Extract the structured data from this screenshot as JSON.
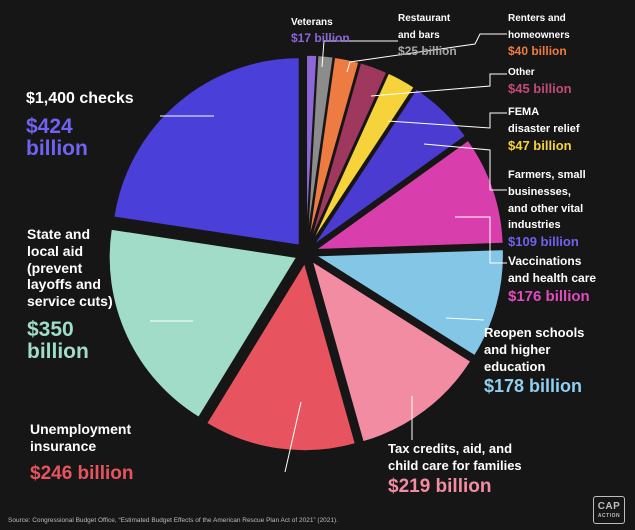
{
  "chart_data": {
    "type": "pie",
    "title": "",
    "unit": "billion",
    "slices": [
      {
        "label": "Veterans",
        "value": 17,
        "value_label": "$17 billion",
        "color": "#8b67d8",
        "label_color": "#ffffff",
        "value_color": "#8b67d8"
      },
      {
        "label": "Restaurant\nand bars",
        "value": 25,
        "value_label": "$25 billion",
        "color": "#8c8c8c",
        "label_color": "#ffffff",
        "value_color": "#a6a6a6"
      },
      {
        "label": "Renters and\nhomeowners",
        "value": 40,
        "value_label": "$40 billion",
        "color": "#ee7c42",
        "label_color": "#ffffff",
        "value_color": "#ee7c42"
      },
      {
        "label": "Other",
        "value": 45,
        "value_label": "$45 billion",
        "color": "#a0385d",
        "label_color": "#ffffff",
        "value_color": "#c24a78"
      },
      {
        "label": "FEMA\ndisaster relief",
        "value": 47,
        "value_label": "$47 billion",
        "color": "#f7d33b",
        "label_color": "#ffffff",
        "value_color": "#f7d33b"
      },
      {
        "label": "Farmers, small\nbusinesses,\nand other vital\nindustries",
        "value": 109,
        "value_label": "$109 billion",
        "color": "#4c3bd0",
        "label_color": "#ffffff",
        "value_color": "#6e62ef"
      },
      {
        "label": "Vaccinations\nand health care",
        "value": 176,
        "value_label": "$176 billion",
        "color": "#d93fac",
        "label_color": "#ffffff",
        "value_color": "#e04cbb"
      },
      {
        "label": "Reopen schools\nand higher\neducation",
        "value": 178,
        "value_label": "$178 billion",
        "color": "#84c6e6",
        "label_color": "#ffffff",
        "value_color": "#8fcfef"
      },
      {
        "label": "Tax credits, aid, and\nchild care for families",
        "value": 219,
        "value_label": "$219 billion",
        "color": "#f28ca3",
        "label_color": "#ffffff",
        "value_color": "#f28ca3"
      },
      {
        "label": "Unemployment\ninsurance",
        "value": 246,
        "value_label": "$246 billion",
        "color": "#e7545f",
        "label_color": "#ffffff",
        "value_color": "#e7545f"
      },
      {
        "label": "State and\nlocal aid\n(prevent\nlayoffs and\nservice cuts)",
        "value": 350,
        "value_label": "$350\nbillion",
        "color": "#a1dcc8",
        "label_color": "#ffffff",
        "value_color": "#a1dcc8"
      },
      {
        "label": "$1,400 checks",
        "value": 424,
        "value_label": "$424\nbillion",
        "color": "#4a3fd8",
        "label_color": "#ffffff",
        "value_color": "#7063f2"
      }
    ]
  },
  "source": "Source: Congressional Budget Office, “Estimated Budget Effects of the American Rescue Plan Act of 2021” (2021).",
  "logo": {
    "line1": "CAP",
    "line2": "ACTION"
  }
}
